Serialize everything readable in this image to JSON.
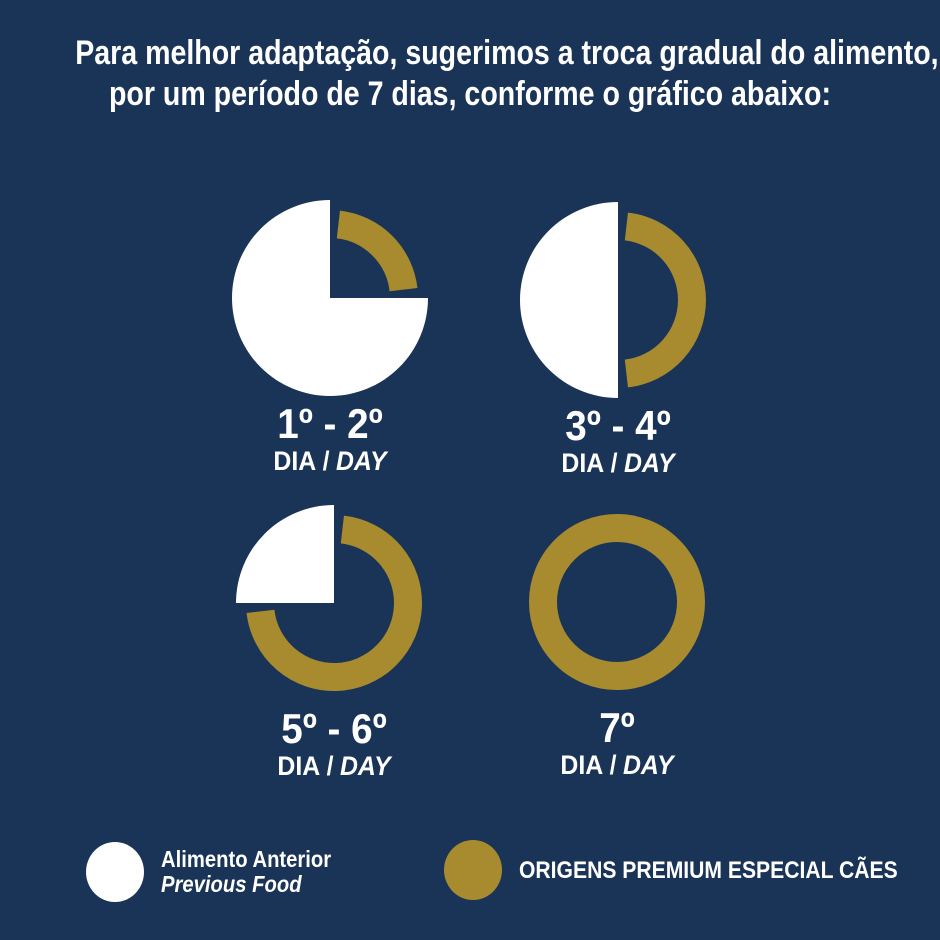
{
  "title": {
    "line1": "Para melhor adaptação, sugerimos a troca gradual do alimento,",
    "line2": "por um período de 7 dias, conforme o gráfico abaixo:"
  },
  "colors": {
    "background": "#1A3457",
    "previous_food": "#FFFFFF",
    "new_food": "#A78B2E",
    "text": "#FFFFFF"
  },
  "chart_data": {
    "type": "pie",
    "title": "Para melhor adaptação, sugerimos a troca gradual do alimento, por um período de 7 dias, conforme o gráfico abaixo:",
    "unit": "percent of daily portion",
    "legend_position": "bottom",
    "series": [
      {
        "day_label": "1º - 2º",
        "period_pt": "DIA",
        "period_sep": "/",
        "period_en": "DAY",
        "previous_food_pct": 75,
        "new_food_pct": 25
      },
      {
        "day_label": "3º - 4º",
        "period_pt": "DIA",
        "period_sep": "/",
        "period_en": "DAY",
        "previous_food_pct": 50,
        "new_food_pct": 50
      },
      {
        "day_label": "5º - 6º",
        "period_pt": "DIA",
        "period_sep": "/",
        "period_en": "DAY",
        "previous_food_pct": 25,
        "new_food_pct": 75
      },
      {
        "day_label": "7º",
        "period_pt": "DIA",
        "period_sep": "/",
        "period_en": "DAY",
        "previous_food_pct": 0,
        "new_food_pct": 100
      }
    ],
    "legend": [
      {
        "swatch_color": "#FFFFFF",
        "label_pt": "Alimento Anterior",
        "label_en": "Previous Food"
      },
      {
        "swatch_color": "#A78B2E",
        "label": "ORIGENS PREMIUM ESPECIAL CÃES"
      }
    ]
  }
}
